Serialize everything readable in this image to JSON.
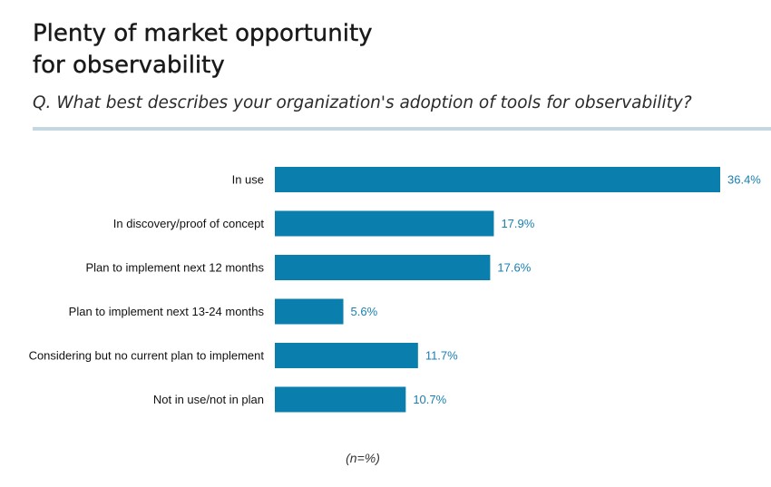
{
  "header": {
    "title_line1": "Plenty of market opportunity",
    "title_line2": "for observability",
    "question": "Q. What best describes your organization's adoption of tools for observability?"
  },
  "footnote": "(n=%)",
  "colors": {
    "bar": "#0a7fae",
    "value_label": "#1a7fb0",
    "rule": "#c5d7e0"
  },
  "chart_data": {
    "type": "bar",
    "orientation": "horizontal",
    "title": "Plenty of market opportunity for observability",
    "subtitle": "Q. What best describes your organization's adoption of tools for observability?",
    "categories": [
      "In use",
      "In discovery/proof of concept",
      "Plan to implement next 12 months",
      "Plan to implement next 13-24 months",
      "Considering but no current plan to implement",
      "Not in use/not in plan"
    ],
    "values": [
      36.4,
      17.9,
      17.6,
      5.6,
      11.7,
      10.7
    ],
    "value_labels": [
      "36.4%",
      "17.9%",
      "17.6%",
      "5.6%",
      "11.7%",
      "10.7%"
    ],
    "unit": "%",
    "xlim": [
      0,
      36.4
    ],
    "grid": false,
    "legend": "none",
    "xlabel": "",
    "ylabel": ""
  }
}
